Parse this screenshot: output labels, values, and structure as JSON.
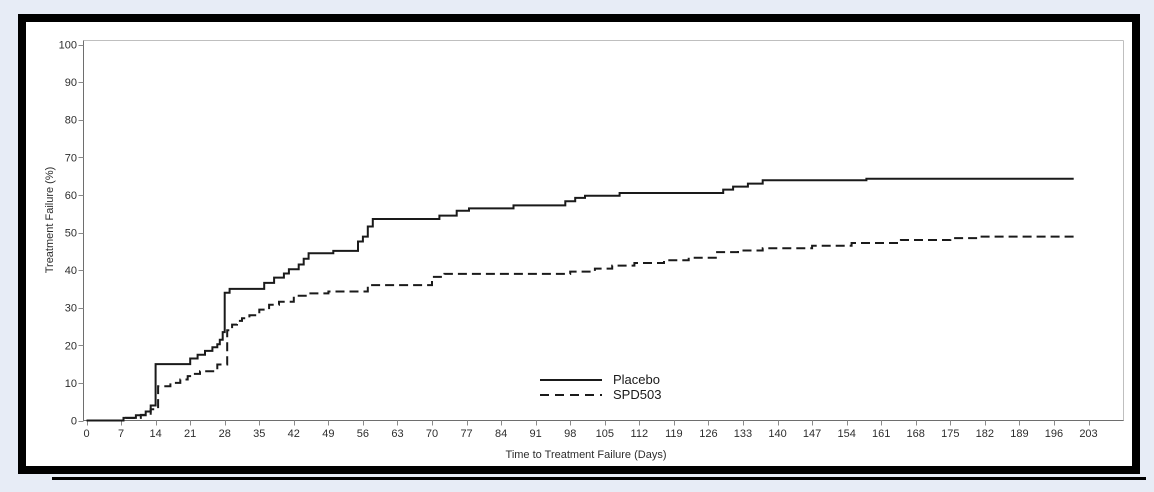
{
  "page": {
    "background_color": "#e7ecf6"
  },
  "figure": {
    "background_color": "#ffffff",
    "border_color": "#000000"
  },
  "chart_data": {
    "type": "line",
    "subtype": "kaplan-meier-step",
    "title": "",
    "xlabel": "Time to Treatment Failure (Days)",
    "ylabel": "Treatment Failure (%)",
    "xlim": [
      0,
      203
    ],
    "ylim": [
      0,
      100
    ],
    "x_ticks": [
      0,
      7,
      14,
      21,
      28,
      35,
      42,
      49,
      56,
      63,
      70,
      77,
      84,
      91,
      98,
      105,
      112,
      119,
      126,
      133,
      140,
      147,
      154,
      161,
      168,
      175,
      182,
      189,
      196,
      203
    ],
    "y_ticks": [
      0,
      10,
      20,
      30,
      40,
      50,
      60,
      70,
      80,
      90,
      100
    ],
    "grid": false,
    "legend_position": "inside-bottom-center",
    "series": [
      {
        "name": "Placebo",
        "line_style": "solid",
        "color": "#1a1a1a",
        "points": [
          [
            0,
            0
          ],
          [
            7.5,
            0.7
          ],
          [
            10,
            1.4
          ],
          [
            12,
            2.4
          ],
          [
            13,
            4
          ],
          [
            14,
            15
          ],
          [
            21,
            16.5
          ],
          [
            22.5,
            17.5
          ],
          [
            24,
            18.5
          ],
          [
            25.5,
            19.5
          ],
          [
            26.5,
            20.3
          ],
          [
            27,
            21.5
          ],
          [
            27.6,
            23.5
          ],
          [
            28,
            34
          ],
          [
            29,
            35
          ],
          [
            36,
            36.6
          ],
          [
            38,
            38
          ],
          [
            40,
            39.1
          ],
          [
            41,
            40.2
          ],
          [
            43,
            41.5
          ],
          [
            44,
            43
          ],
          [
            45,
            44.5
          ],
          [
            50,
            45.1
          ],
          [
            55,
            47.6
          ],
          [
            56,
            48.9
          ],
          [
            57,
            51.6
          ],
          [
            58,
            53.6
          ],
          [
            71.5,
            54.5
          ],
          [
            75,
            55.8
          ],
          [
            77.5,
            56.4
          ],
          [
            86.5,
            57.2
          ],
          [
            97,
            58.3
          ],
          [
            99,
            59.2
          ],
          [
            101,
            59.8
          ],
          [
            108,
            60.5
          ],
          [
            129,
            61.4
          ],
          [
            131,
            62.2
          ],
          [
            134,
            63.0
          ],
          [
            137,
            63.9
          ],
          [
            158,
            64.3
          ],
          [
            200,
            64.3
          ]
        ]
      },
      {
        "name": "SPD503",
        "line_style": "dashed",
        "color": "#1a1a1a",
        "points": [
          [
            0,
            0
          ],
          [
            8,
            0.7
          ],
          [
            11,
            1.5
          ],
          [
            13,
            3
          ],
          [
            14.5,
            9.1
          ],
          [
            17,
            10
          ],
          [
            19,
            10.9
          ],
          [
            20.5,
            11.8
          ],
          [
            21.5,
            12.4
          ],
          [
            23,
            13.1
          ],
          [
            26.5,
            14.9
          ],
          [
            28.5,
            24
          ],
          [
            29.5,
            25.5
          ],
          [
            30.5,
            26.5
          ],
          [
            31.5,
            27.2
          ],
          [
            33,
            28
          ],
          [
            35,
            29.5
          ],
          [
            37,
            30.8
          ],
          [
            39,
            31.6
          ],
          [
            42,
            33.2
          ],
          [
            45,
            33.8
          ],
          [
            49,
            34.3
          ],
          [
            57,
            36
          ],
          [
            70,
            38.2
          ],
          [
            72.5,
            39
          ],
          [
            98,
            39.6
          ],
          [
            103,
            40.4
          ],
          [
            106.5,
            41.2
          ],
          [
            111,
            41.9
          ],
          [
            117,
            42.6
          ],
          [
            122,
            43.3
          ],
          [
            127.5,
            44.8
          ],
          [
            132,
            45.2
          ],
          [
            137,
            45.8
          ],
          [
            147,
            46.5
          ],
          [
            155,
            47.2
          ],
          [
            165,
            48
          ],
          [
            175,
            48.5
          ],
          [
            181,
            48.9
          ],
          [
            200,
            48.9
          ]
        ]
      }
    ]
  }
}
